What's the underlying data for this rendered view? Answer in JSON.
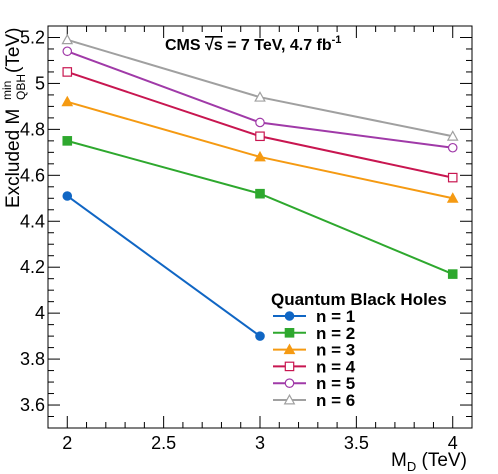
{
  "chart_data": {
    "type": "line",
    "title_parts": [
      "CMS ",
      "√s",
      " = 7 TeV, 4.7 fb",
      "-1"
    ],
    "xlabel_parts": [
      "M",
      "D",
      " (TeV)"
    ],
    "ylabel_parts": [
      "Excluded M",
      "min",
      "QBH",
      " (TeV)"
    ],
    "xlim": [
      1.9,
      4.1
    ],
    "ylim": [
      3.5,
      5.25
    ],
    "xticks_major": [
      "2",
      "2.5",
      "3",
      "3.5",
      "4"
    ],
    "yticks_major": [
      "3.6",
      "3.8",
      "4",
      "4.2",
      "4.4",
      "4.6",
      "4.8",
      "5",
      "5.2"
    ],
    "legend_title": "Quantum Black Holes",
    "legend_position": "bottom-center",
    "grid": false,
    "series": [
      {
        "name": "n = 1",
        "color": "#1066c4",
        "marker": "circle-filled",
        "x": [
          2,
          3
        ],
        "y": [
          4.51,
          3.9
        ]
      },
      {
        "name": "n = 2",
        "color": "#2ea82e",
        "marker": "square-filled",
        "x": [
          2,
          3,
          4
        ],
        "y": [
          4.75,
          4.52,
          4.17
        ]
      },
      {
        "name": "n = 3",
        "color": "#f59a12",
        "marker": "triangle-filled",
        "x": [
          2,
          3,
          4
        ],
        "y": [
          4.92,
          4.68,
          4.5
        ]
      },
      {
        "name": "n = 4",
        "color": "#c81650",
        "marker": "square-open",
        "x": [
          2,
          3,
          4
        ],
        "y": [
          5.05,
          4.77,
          4.59
        ]
      },
      {
        "name": "n = 5",
        "color": "#a03aa8",
        "marker": "circle-open",
        "x": [
          2,
          3,
          4
        ],
        "y": [
          5.14,
          4.83,
          4.72
        ]
      },
      {
        "name": "n = 6",
        "color": "#a0a0a0",
        "marker": "triangle-open",
        "x": [
          2,
          3,
          4
        ],
        "y": [
          5.19,
          4.94,
          4.77
        ]
      }
    ]
  }
}
